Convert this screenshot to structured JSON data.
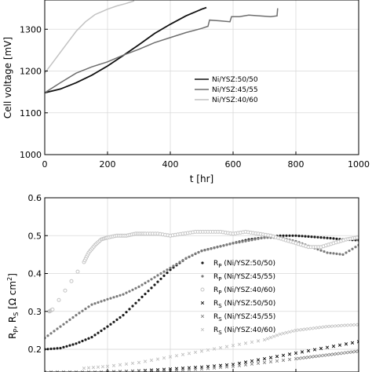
{
  "chart_data": [
    {
      "type": "line",
      "xlabel": "t [hr]",
      "ylabel": "Cell voltage [mV]",
      "xlim": [
        0,
        1000
      ],
      "ylim": [
        1000,
        1370
      ],
      "xticks": [
        0,
        200,
        400,
        600,
        800,
        1000
      ],
      "yticks": [
        1000,
        1100,
        1200,
        1300
      ],
      "grid": true,
      "legend_position": "center-right",
      "series": [
        {
          "name": "Ni/YSZ:50/50",
          "color": "#111111",
          "x": [
            0,
            50,
            100,
            150,
            200,
            250,
            300,
            350,
            400,
            450,
            500,
            515
          ],
          "y": [
            1148,
            1157,
            1172,
            1190,
            1212,
            1237,
            1263,
            1290,
            1312,
            1332,
            1348,
            1352
          ]
        },
        {
          "name": "Ni/YSZ:45/55",
          "color": "#6e6e6e",
          "x": [
            0,
            50,
            100,
            150,
            200,
            250,
            300,
            350,
            400,
            450,
            500,
            520,
            525,
            560,
            590,
            595,
            620,
            650,
            720,
            740,
            742
          ],
          "y": [
            1148,
            1172,
            1195,
            1210,
            1222,
            1238,
            1252,
            1268,
            1280,
            1292,
            1302,
            1307,
            1322,
            1320,
            1318,
            1330,
            1330,
            1334,
            1330,
            1332,
            1350
          ]
        },
        {
          "name": "Ni/YSZ:40/60",
          "color": "#c2c2c2",
          "x": [
            0,
            25,
            50,
            75,
            100,
            130,
            160,
            200,
            230,
            260,
            285
          ],
          "y": [
            1195,
            1220,
            1245,
            1270,
            1295,
            1318,
            1335,
            1348,
            1356,
            1362,
            1368
          ]
        }
      ]
    },
    {
      "type": "scatter",
      "xlabel": "",
      "ylabel": "Rp, Rs [Ω cm²]",
      "xlim": [
        0,
        1000
      ],
      "ylim": [
        0.14,
        0.6
      ],
      "yticks": [
        0.2,
        0.3,
        0.4,
        0.5,
        0.6
      ],
      "grid": true,
      "legend_position": "center-right",
      "series": [
        {
          "name": "R_P (Ni/YSZ:50/50)",
          "label_main": "R",
          "label_sub": "P",
          "label_rest": " (Ni/YSZ:50/50)",
          "marker": "dot",
          "color": "#1a1a1a",
          "x": [
            0,
            50,
            100,
            150,
            200,
            250,
            300,
            350,
            400,
            450,
            500,
            550,
            600,
            650,
            700,
            750,
            800,
            850,
            900,
            950,
            1000
          ],
          "y": [
            0.2,
            0.203,
            0.215,
            0.232,
            0.26,
            0.29,
            0.33,
            0.37,
            0.41,
            0.44,
            0.46,
            0.47,
            0.48,
            0.49,
            0.495,
            0.5,
            0.5,
            0.497,
            0.494,
            0.49,
            0.488
          ]
        },
        {
          "name": "R_P (Ni/YSZ:45/55)",
          "label_main": "R",
          "label_sub": "P",
          "label_rest": " (Ni/YSZ:45/55)",
          "marker": "dot",
          "color": "#7a7a7a",
          "x": [
            0,
            50,
            100,
            150,
            200,
            250,
            300,
            350,
            400,
            450,
            500,
            550,
            600,
            650,
            700,
            750,
            800,
            850,
            900,
            950,
            1000
          ],
          "y": [
            0.23,
            0.26,
            0.29,
            0.318,
            0.332,
            0.345,
            0.365,
            0.39,
            0.415,
            0.44,
            0.46,
            0.47,
            0.48,
            0.487,
            0.495,
            0.495,
            0.485,
            0.47,
            0.455,
            0.45,
            0.475
          ]
        },
        {
          "name": "R_P (Ni/YSZ:40/60)",
          "label_main": "R",
          "label_sub": "P",
          "label_rest": " (Ni/YSZ:40/60)",
          "marker": "circle",
          "color": "#c4c4c4",
          "x": [
            15,
            25,
            125,
            140,
            160,
            180,
            200,
            230,
            260,
            290,
            320,
            360,
            400,
            440,
            480,
            520,
            560,
            600,
            640,
            680,
            720,
            760,
            800,
            840,
            880,
            920,
            960,
            995
          ],
          "y": [
            0.3,
            0.305,
            0.43,
            0.455,
            0.475,
            0.49,
            0.495,
            0.5,
            0.5,
            0.505,
            0.505,
            0.505,
            0.5,
            0.505,
            0.51,
            0.51,
            0.51,
            0.505,
            0.51,
            0.505,
            0.5,
            0.49,
            0.48,
            0.47,
            0.47,
            0.48,
            0.49,
            0.495
          ]
        },
        {
          "name": "R_S (Ni/YSZ:50/50)",
          "label_main": "R",
          "label_sub": "S",
          "label_rest": " (Ni/YSZ:50/50)",
          "marker": "x",
          "color": "#1a1a1a",
          "x": [
            200,
            300,
            400,
            500,
            600,
            700,
            800,
            900,
            1000
          ],
          "y": [
            0.14,
            0.143,
            0.148,
            0.153,
            0.16,
            0.175,
            0.19,
            0.205,
            0.22
          ]
        },
        {
          "name": "R_S (Ni/YSZ:45/55)",
          "label_main": "R",
          "label_sub": "S",
          "label_rest": " (Ni/YSZ:45/55)",
          "marker": "x",
          "color": "#8a8a8a",
          "x": [
            0,
            100,
            200,
            300,
            400,
            500,
            600,
            700,
            800,
            850,
            900,
            950,
            1000
          ],
          "y": [
            0.14,
            0.14,
            0.14,
            0.142,
            0.144,
            0.148,
            0.155,
            0.165,
            0.175,
            0.18,
            0.185,
            0.19,
            0.195
          ]
        },
        {
          "name": "R_S (Ni/YSZ:40/60)",
          "label_main": "R",
          "label_sub": "S",
          "label_rest": " (Ni/YSZ:40/60)",
          "marker": "x",
          "color": "#c4c4c4",
          "x": [
            125,
            200,
            300,
            400,
            500,
            600,
            700,
            750,
            800,
            850,
            900,
            950,
            1000
          ],
          "y": [
            0.15,
            0.155,
            0.165,
            0.18,
            0.195,
            0.21,
            0.225,
            0.24,
            0.25,
            0.255,
            0.26,
            0.263,
            0.265
          ]
        }
      ]
    }
  ]
}
